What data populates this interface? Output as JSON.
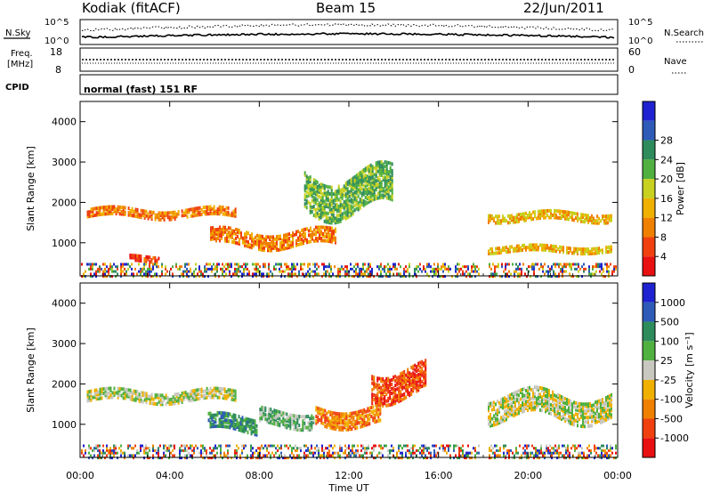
{
  "header": {
    "station": "Kodiak (fitACF)",
    "beam": "Beam 15",
    "date": "22/Jun/2011"
  },
  "panels": {
    "nsky_label": "N.Sky",
    "nsearch_label": "N.Search",
    "noise_ticks": [
      "10^5",
      "10^0"
    ],
    "freq_label_1": "Freq.",
    "freq_label_2": "[MHz]",
    "freq_ticks": [
      "18",
      "8"
    ],
    "nave_label": "Nave",
    "nave_ticks": [
      "60",
      "0"
    ],
    "cpid_label": "CPID",
    "cpid_value": "normal (fast) 151 RF"
  },
  "colors": {
    "power": [
      "#1e22d0",
      "#2e5ab8",
      "#2e8c5c",
      "#50b040",
      "#c8d020",
      "#f0b000",
      "#f08000",
      "#f04010",
      "#e81010"
    ],
    "velocity": [
      "#1e22d0",
      "#2e5ab8",
      "#2e8c5c",
      "#50b040",
      "#c8c8c0",
      "#f0b000",
      "#f08000",
      "#f04010",
      "#e81010"
    ]
  },
  "chart_data": [
    {
      "type": "heatmap",
      "quantity": "Power",
      "ylabel": "Slant Range [km]",
      "xlabel": "Time UT",
      "ylim": [
        180,
        4500
      ],
      "yticks": [
        1000,
        2000,
        3000,
        4000
      ],
      "xlim_hours": [
        0,
        24
      ],
      "xticks": [
        "00:00",
        "04:00",
        "08:00",
        "12:00",
        "16:00",
        "20:00",
        "00:00"
      ],
      "colorbar_label": "Power [dB]",
      "colorbar_ticks": [
        "4",
        "8",
        "12",
        "16",
        "20",
        "24",
        "28"
      ],
      "features": [
        {
          "t_start": 0.3,
          "t_end": 7.0,
          "r_center": 1800,
          "r_width": 220,
          "level": 6
        },
        {
          "t_start": 5.8,
          "t_end": 11.5,
          "r_center": 1150,
          "r_width": 350,
          "level": 6
        },
        {
          "t_start": 2.2,
          "t_end": 3.6,
          "r_center": 650,
          "r_width": 150,
          "level": 7
        },
        {
          "t_start": 10.0,
          "t_end": 14.0,
          "r_center": 2300,
          "r_width": 900,
          "level": 3
        },
        {
          "t_start": 18.2,
          "t_end": 23.8,
          "r_center": 1700,
          "r_width": 200,
          "level": 5
        },
        {
          "t_start": 18.2,
          "t_end": 23.8,
          "r_center": 900,
          "r_width": 150,
          "level": 5
        }
      ]
    },
    {
      "type": "heatmap",
      "quantity": "Velocity",
      "ylabel": "Slant Range [km]",
      "xlabel": "Time UT",
      "ylim": [
        180,
        4500
      ],
      "yticks": [
        1000,
        2000,
        3000,
        4000
      ],
      "xlim_hours": [
        0,
        24
      ],
      "xticks": [
        "00:00",
        "04:00",
        "08:00",
        "12:00",
        "16:00",
        "20:00",
        "00:00"
      ],
      "colorbar_label": "Velocity [m s⁻¹]",
      "colorbar_ticks": [
        "1000",
        "500",
        "100",
        "25",
        "-25",
        "-100",
        "-500",
        "-1000"
      ],
      "features": [
        {
          "t_start": 0.3,
          "t_end": 7.0,
          "r_center": 1750,
          "r_width": 250,
          "level": 4
        },
        {
          "t_start": 5.7,
          "t_end": 8.0,
          "r_center": 1050,
          "r_width": 350,
          "level": 2
        },
        {
          "t_start": 8.0,
          "t_end": 10.5,
          "r_center": 1200,
          "r_width": 350,
          "level": 3
        },
        {
          "t_start": 10.5,
          "t_end": 13.5,
          "r_center": 1250,
          "r_width": 400,
          "level": 6
        },
        {
          "t_start": 13.0,
          "t_end": 15.5,
          "r_center": 2100,
          "r_width": 700,
          "level": 7
        },
        {
          "t_start": 18.2,
          "t_end": 23.8,
          "r_center": 1500,
          "r_width": 600,
          "level": 4
        }
      ]
    }
  ]
}
